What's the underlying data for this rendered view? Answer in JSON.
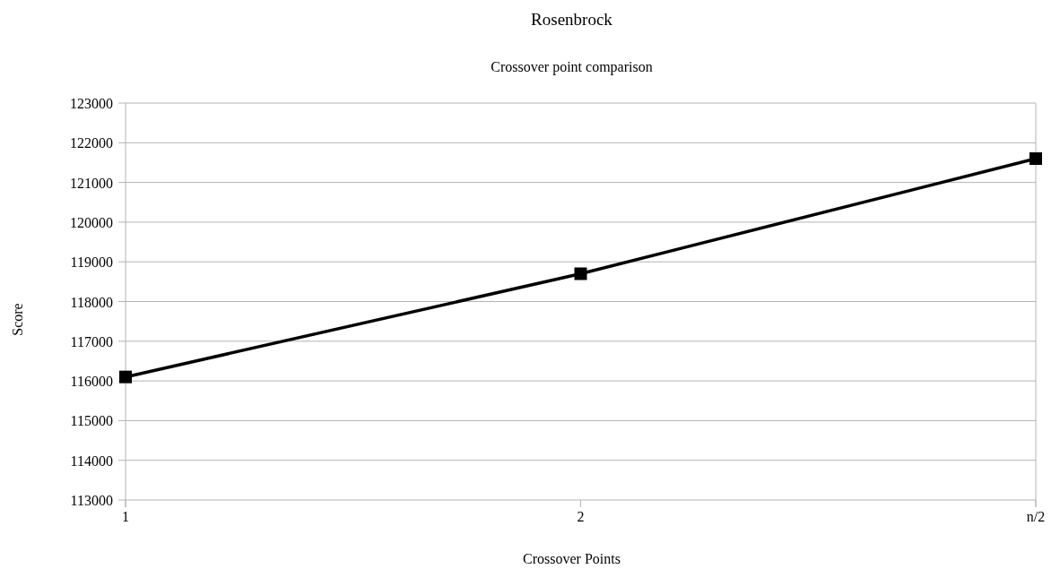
{
  "chart_data": {
    "type": "line",
    "title": "Rosenbrock",
    "subtitle": "Crossover point comparison",
    "xlabel": "Crossover Points",
    "ylabel": "Score",
    "categories": [
      "1",
      "2",
      "n/2"
    ],
    "series": [
      {
        "color": "#000000",
        "values": [
          116100,
          118700,
          121600
        ]
      }
    ],
    "ylim": [
      113000,
      123000
    ],
    "yticks": [
      113000,
      114000,
      115000,
      116000,
      117000,
      118000,
      119000,
      120000,
      121000,
      122000,
      123000
    ],
    "grid": "y",
    "marker": "square",
    "line_style": "solid"
  }
}
